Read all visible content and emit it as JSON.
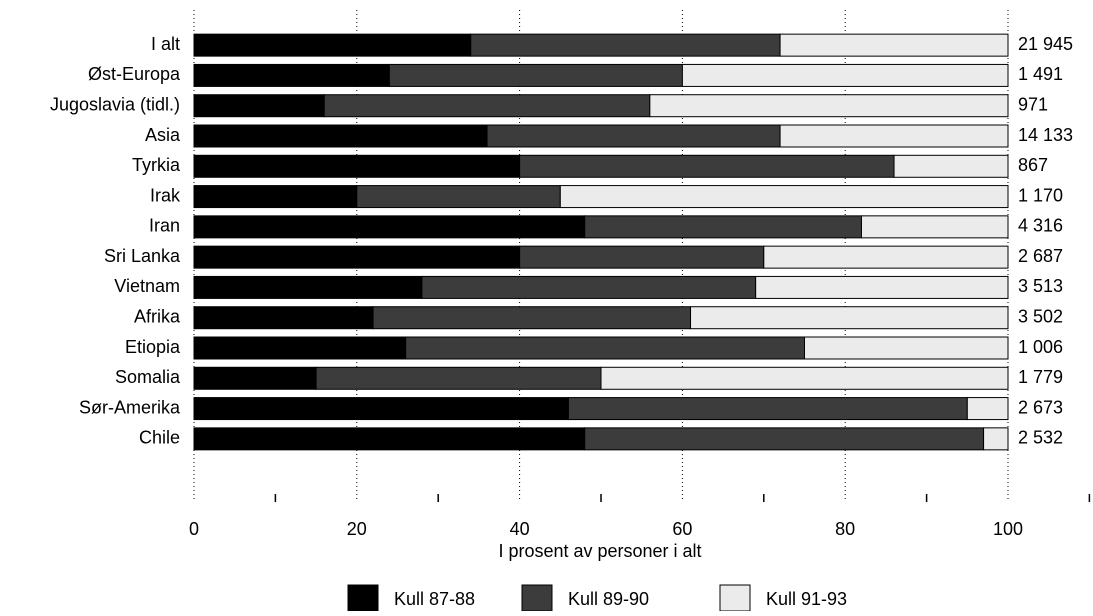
{
  "chart_data": {
    "type": "stacked-bar-horizontal",
    "x_label": "I prosent av personer i alt",
    "categories": [
      "I alt",
      "Øst-Europa",
      "Jugoslavia (tidl.)",
      "Asia",
      "Tyrkia",
      "Irak",
      "Iran",
      "Sri Lanka",
      "Vietnam",
      "Afrika",
      "Etiopia",
      "Somalia",
      "Sør-Amerika",
      "Chile"
    ],
    "series": [
      {
        "name": "Kull 87-88",
        "color": "#000000",
        "values": [
          34,
          24,
          16,
          36,
          40,
          20,
          48,
          40,
          28,
          22,
          26,
          15,
          46,
          48
        ]
      },
      {
        "name": "Kull 89-90",
        "color": "#3c3c3c",
        "values": [
          38,
          36,
          40,
          36,
          46,
          25,
          34,
          30,
          41,
          39,
          49,
          35,
          49,
          49
        ]
      },
      {
        "name": "Kull 91-93",
        "color": "#ebebeb",
        "values": [
          28,
          40,
          44,
          28,
          14,
          55,
          18,
          30,
          31,
          39,
          25,
          50,
          5,
          3
        ]
      }
    ],
    "totals": {
      "values": [
        21945,
        1491,
        971,
        14133,
        867,
        1170,
        4316,
        2687,
        3513,
        3502,
        1006,
        1779,
        2673,
        2532
      ],
      "value_labels": [
        "21 945",
        "1 491",
        "971",
        "14 133",
        "867",
        "1 170",
        "4 316",
        "2 687",
        "3 513",
        "3 502",
        "1 006",
        "1 779",
        "2 673",
        "2 532"
      ]
    },
    "xlim": [
      0,
      100
    ],
    "xticks": [
      0,
      20,
      40,
      60,
      80,
      100
    ],
    "minor_xticks": [
      10,
      30,
      50,
      70,
      90,
      110
    ],
    "grid": true
  }
}
